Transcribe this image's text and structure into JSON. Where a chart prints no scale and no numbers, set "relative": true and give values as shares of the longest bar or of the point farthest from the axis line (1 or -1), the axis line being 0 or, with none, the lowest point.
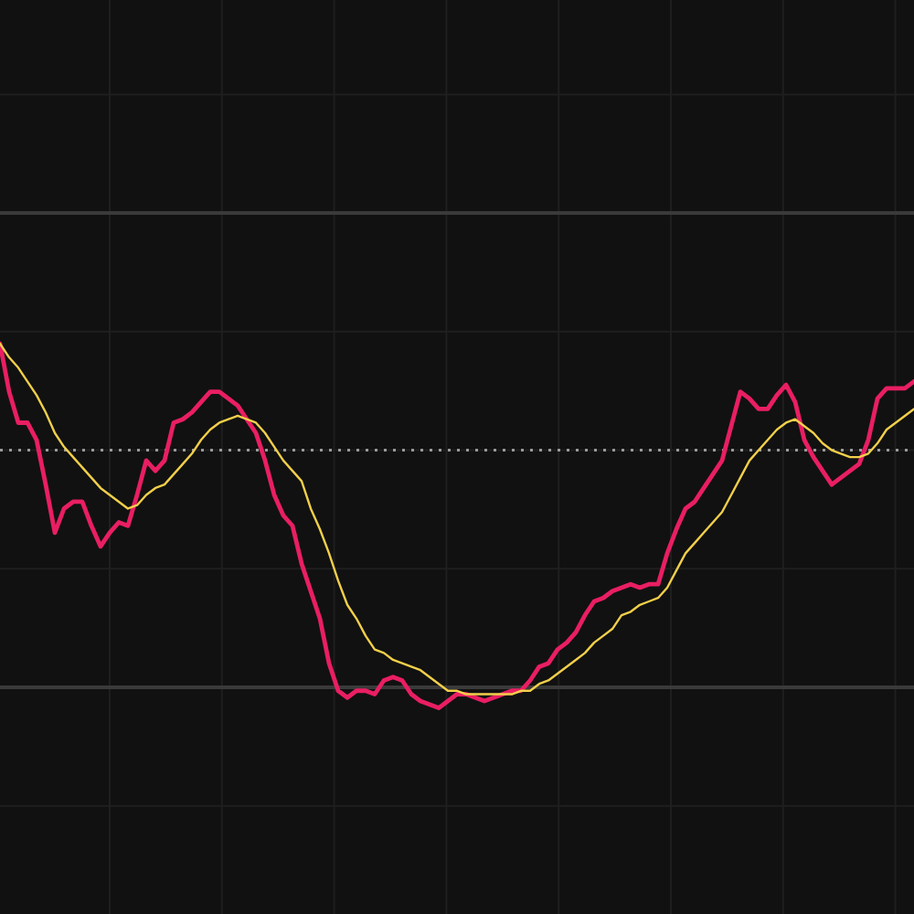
{
  "chart_data": {
    "type": "line",
    "relative": true,
    "grid": true,
    "categories": [
      null,
      null,
      null,
      null,
      null,
      null,
      null,
      null,
      null,
      null,
      null,
      null,
      null,
      null,
      null,
      null,
      null,
      null,
      null,
      null,
      null,
      null,
      null,
      null,
      null,
      null,
      null,
      null,
      null,
      null,
      null,
      null,
      null,
      null,
      null,
      null,
      null,
      null,
      null,
      null,
      null,
      null,
      null,
      null,
      null,
      null,
      null,
      null,
      null,
      null,
      null,
      null,
      null,
      null,
      null,
      null,
      null,
      null,
      null,
      null,
      null,
      null,
      null,
      null,
      null,
      null,
      null,
      null,
      null,
      null,
      null,
      null,
      null,
      null,
      null,
      null,
      null,
      null,
      null,
      null,
      null,
      null,
      null,
      null,
      null,
      null,
      null,
      null,
      null,
      null,
      null,
      null,
      null,
      null,
      null,
      null,
      null,
      null,
      null,
      null,
      null
    ],
    "series": [
      {
        "color": "#e91e63",
        "values": [
          1.0,
          0.86,
          0.77,
          0.77,
          0.72,
          0.59,
          0.45,
          0.52,
          0.54,
          0.54,
          0.47,
          0.41,
          0.45,
          0.48,
          0.47,
          0.56,
          0.66,
          0.63,
          0.66,
          0.77,
          0.78,
          0.8,
          0.83,
          0.86,
          0.86,
          0.84,
          0.82,
          0.78,
          0.74,
          0.66,
          0.56,
          0.5,
          0.47,
          0.36,
          0.28,
          0.2,
          0.07,
          -0.01,
          -0.03,
          -0.01,
          -0.01,
          -0.02,
          0.02,
          0.03,
          0.02,
          -0.02,
          -0.04,
          -0.05,
          -0.06,
          -0.04,
          -0.02,
          -0.02,
          -0.03,
          -0.04,
          -0.03,
          -0.02,
          -0.01,
          -0.01,
          0.02,
          0.06,
          0.07,
          0.11,
          0.13,
          0.16,
          0.21,
          0.25,
          0.26,
          0.28,
          0.29,
          0.3,
          0.29,
          0.3,
          0.3,
          0.39,
          0.46,
          0.52,
          0.54,
          0.58,
          0.62,
          0.66,
          0.76,
          0.86,
          0.84,
          0.81,
          0.81,
          0.85,
          0.88,
          0.83,
          0.72,
          0.67,
          0.63,
          0.59,
          0.61,
          0.63,
          0.65,
          0.72,
          0.84,
          0.87,
          0.87,
          0.87,
          0.89
        ]
      },
      {
        "color": "#f2cf4a",
        "values": [
          1.0,
          0.96,
          0.93,
          0.89,
          0.85,
          0.8,
          0.74,
          0.7,
          0.67,
          0.64,
          0.61,
          0.58,
          0.56,
          0.54,
          0.52,
          0.53,
          0.56,
          0.58,
          0.59,
          0.62,
          0.65,
          0.68,
          0.72,
          0.75,
          0.77,
          0.78,
          0.79,
          0.78,
          0.77,
          0.74,
          0.7,
          0.66,
          0.63,
          0.6,
          0.52,
          0.46,
          0.39,
          0.31,
          0.24,
          0.2,
          0.15,
          0.11,
          0.1,
          0.08,
          0.07,
          0.06,
          0.05,
          0.03,
          0.01,
          -0.01,
          -0.01,
          -0.02,
          -0.02,
          -0.02,
          -0.02,
          -0.02,
          -0.02,
          -0.01,
          -0.01,
          0.01,
          0.02,
          0.04,
          0.06,
          0.08,
          0.1,
          0.13,
          0.15,
          0.17,
          0.21,
          0.22,
          0.24,
          0.25,
          0.26,
          0.29,
          0.34,
          0.39,
          0.42,
          0.45,
          0.48,
          0.51,
          0.56,
          0.61,
          0.66,
          0.69,
          0.72,
          0.75,
          0.77,
          0.78,
          0.76,
          0.74,
          0.71,
          0.69,
          0.68,
          0.67,
          0.67,
          0.68,
          0.71,
          0.75,
          0.77,
          0.79,
          0.81
        ]
      }
    ],
    "ref_lines": [
      {
        "axis": "y",
        "value": 1.38,
        "color": "#3a3a3a",
        "line_style": "solid"
      },
      {
        "axis": "y",
        "value": 0.69,
        "color": "#9a9a9a",
        "line_style": "dotted"
      },
      {
        "axis": "y",
        "value": 0,
        "color": "#3a3a3a",
        "line_style": "solid"
      }
    ]
  }
}
